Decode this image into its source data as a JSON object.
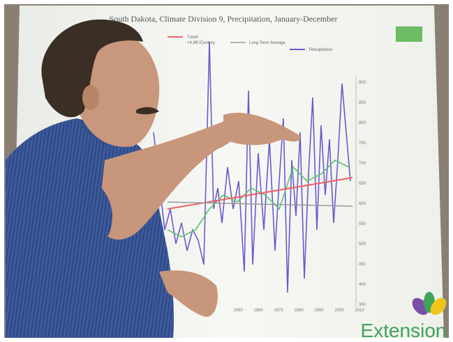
{
  "screen": {
    "title": "South Dakota, Climate Division 9, Precipitation, January-December",
    "legend": [
      "Trend",
      "+4.96\"/Century",
      "Long Term Average",
      "Precipitation"
    ],
    "y_axis_labels": [
      "900",
      "850",
      "800",
      "750",
      "700",
      "650",
      "600",
      "550",
      "500",
      "450",
      "400",
      "350"
    ],
    "x_axis_labels": [
      "1950",
      "1960",
      "1970",
      "1980",
      "1990",
      "2000",
      "2010"
    ],
    "logo": "Extension"
  }
}
